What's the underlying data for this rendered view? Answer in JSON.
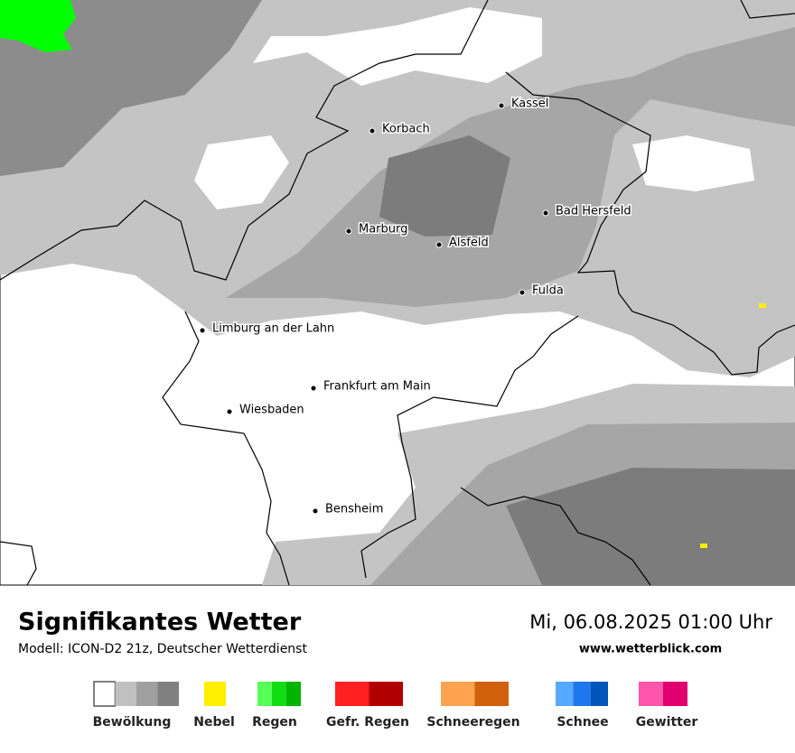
{
  "header": {
    "title": "Signifikantes Wetter",
    "model": "Modell: ICON-D2 21z, Deutscher Wetterdienst",
    "datetime": "Mi, 06.08.2025 01:00 Uhr",
    "website": "www.wetterblick.com"
  },
  "cities": [
    "Kassel",
    "Korbach",
    "Bad Hersfeld",
    "Marburg",
    "Alsfeld",
    "Fulda",
    "Limburg an der Lahn",
    "Frankfurt am Main",
    "Wiesbaden",
    "Bensheim"
  ],
  "legend": [
    {
      "label": "Bewölkung",
      "colors": [
        "#ffffff",
        "#c0c0c0",
        "#a0a0a0",
        "#808080"
      ]
    },
    {
      "label": "Nebel",
      "colors": [
        "#ffee00"
      ]
    },
    {
      "label": "Regen",
      "colors": [
        "#55ff55",
        "#11dd11",
        "#00b400"
      ]
    },
    {
      "label": "Gefr. Regen",
      "colors": [
        "#ff2020",
        "#b00000"
      ]
    },
    {
      "label": "Schneeregen",
      "colors": [
        "#ffa24f",
        "#d0600c"
      ]
    },
    {
      "label": "Schnee",
      "colors": [
        "#55aaff",
        "#1f77ee",
        "#0055bb"
      ]
    },
    {
      "label": "Gewitter",
      "colors": [
        "#ff55aa",
        "#e0006e"
      ]
    }
  ]
}
